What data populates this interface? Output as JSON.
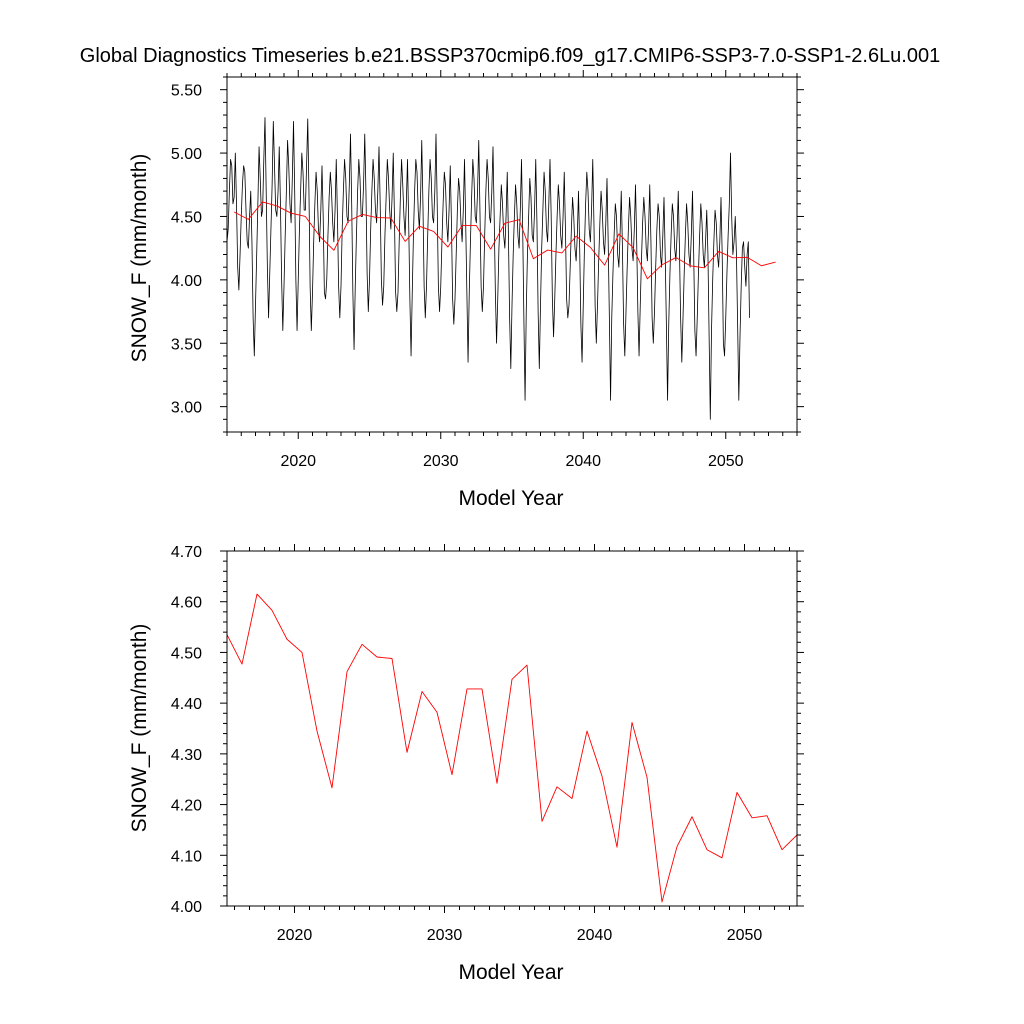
{
  "chart_data": [
    {
      "type": "line",
      "title": "Global Diagnostics Timeseries b.e21.BSSP370cmip6.f09_g17.CMIP6-SSP3-7.0-SSP1-2.6Lu.001",
      "xlabel": "Model Year",
      "ylabel": "SNOW_F (mm/month)",
      "xlim": [
        2015,
        2055
      ],
      "ylim": [
        2.8,
        5.6
      ],
      "xticks": [
        2020,
        2030,
        2040,
        2050
      ],
      "yticks": [
        3.0,
        3.5,
        4.0,
        4.5,
        5.0,
        5.5
      ],
      "ytick_labels": [
        "3.00",
        "3.50",
        "4.00",
        "4.50",
        "5.00",
        "5.50"
      ],
      "series": [
        {
          "kind": "monthly",
          "color": "#000000",
          "x_start": 2015.0,
          "x_step": 0.0833333,
          "values": [
            4.3,
            4.4,
            4.7,
            4.95,
            4.9,
            4.6,
            4.65,
            5.0,
            4.6,
            4.1,
            3.92,
            4.2,
            4.5,
            4.75,
            4.9,
            4.85,
            4.55,
            4.3,
            4.25,
            4.5,
            4.7,
            4.3,
            3.7,
            3.4,
            3.8,
            4.2,
            4.6,
            5.05,
            4.8,
            4.5,
            4.55,
            4.95,
            5.28,
            4.7,
            4.1,
            3.7,
            4.05,
            4.4,
            4.75,
            5.25,
            4.9,
            4.55,
            4.5,
            4.7,
            5.05,
            4.6,
            4.0,
            3.6,
            3.95,
            4.35,
            4.7,
            5.1,
            4.9,
            4.6,
            4.45,
            4.8,
            5.25,
            4.7,
            4.0,
            3.6,
            4.0,
            4.4,
            4.7,
            5.0,
            4.85,
            4.55,
            4.55,
            4.9,
            5.27,
            4.7,
            3.95,
            3.6,
            3.9,
            4.3,
            4.6,
            4.85,
            4.7,
            4.4,
            4.3,
            4.55,
            4.9,
            4.5,
            3.9,
            3.85,
            4.0,
            4.35,
            4.65,
            4.85,
            4.7,
            4.45,
            4.3,
            4.55,
            4.95,
            4.5,
            3.95,
            3.7,
            3.95,
            4.4,
            4.7,
            4.95,
            4.8,
            4.5,
            4.45,
            4.75,
            5.15,
            4.6,
            3.9,
            3.45,
            3.95,
            4.35,
            4.7,
            4.95,
            4.8,
            4.5,
            4.5,
            4.75,
            5.15,
            4.7,
            4.05,
            3.75,
            4.0,
            4.4,
            4.7,
            4.95,
            4.8,
            4.55,
            4.45,
            4.7,
            5.05,
            4.6,
            4.0,
            3.8,
            3.95,
            4.35,
            4.65,
            4.95,
            4.8,
            4.55,
            4.4,
            4.65,
            5.0,
            4.5,
            3.9,
            3.75,
            3.9,
            4.3,
            4.65,
            4.95,
            4.75,
            4.5,
            4.35,
            4.6,
            4.95,
            4.45,
            3.85,
            3.4,
            3.9,
            4.35,
            4.7,
            4.95,
            4.85,
            4.55,
            4.4,
            4.65,
            5.1,
            4.6,
            3.95,
            3.7,
            3.95,
            4.35,
            4.7,
            4.95,
            4.8,
            4.5,
            4.45,
            4.7,
            5.15,
            4.6,
            3.95,
            3.75,
            3.95,
            4.3,
            4.6,
            4.85,
            4.75,
            4.45,
            4.3,
            4.55,
            4.9,
            4.45,
            3.85,
            3.65,
            3.85,
            4.2,
            4.55,
            4.8,
            4.7,
            4.45,
            4.3,
            4.55,
            4.95,
            4.45,
            3.9,
            3.35,
            3.9,
            4.3,
            4.65,
            4.95,
            4.8,
            4.5,
            4.45,
            4.7,
            5.1,
            4.55,
            3.95,
            3.75,
            3.95,
            4.35,
            4.7,
            4.95,
            4.8,
            4.5,
            4.45,
            4.7,
            5.05,
            4.5,
            3.9,
            3.5,
            3.85,
            4.25,
            4.5,
            4.75,
            4.6,
            4.35,
            4.25,
            4.5,
            4.85,
            4.35,
            3.7,
            3.3,
            3.8,
            4.2,
            4.5,
            4.75,
            4.6,
            4.35,
            4.25,
            4.55,
            4.95,
            4.4,
            3.7,
            3.05,
            3.75,
            4.2,
            4.5,
            4.8,
            4.65,
            4.35,
            4.3,
            4.55,
            4.95,
            4.45,
            3.75,
            3.3,
            3.8,
            4.25,
            4.55,
            4.85,
            4.7,
            4.4,
            4.3,
            4.6,
            4.95,
            4.5,
            3.85,
            3.55,
            3.85,
            4.2,
            4.5,
            4.75,
            4.6,
            4.35,
            4.25,
            4.5,
            4.85,
            4.4,
            3.85,
            3.7,
            3.8,
            4.1,
            4.4,
            4.65,
            4.5,
            4.25,
            4.15,
            4.35,
            4.7,
            4.25,
            3.65,
            3.35,
            3.8,
            4.25,
            4.6,
            4.85,
            4.7,
            4.4,
            4.3,
            4.55,
            4.95,
            4.45,
            3.8,
            3.5,
            3.8,
            4.15,
            4.45,
            4.7,
            4.55,
            4.3,
            4.2,
            4.45,
            4.8,
            4.3,
            3.7,
            3.05,
            3.7,
            4.05,
            4.35,
            4.6,
            4.5,
            4.2,
            4.1,
            4.35,
            4.7,
            4.25,
            3.65,
            3.4,
            3.75,
            4.1,
            4.4,
            4.65,
            4.5,
            4.25,
            4.15,
            4.4,
            4.75,
            4.3,
            3.75,
            3.4,
            3.8,
            4.15,
            4.45,
            4.65,
            4.5,
            4.25,
            4.15,
            4.4,
            4.75,
            4.3,
            3.7,
            3.5,
            3.75,
            4.1,
            4.4,
            4.6,
            4.5,
            4.2,
            4.1,
            4.35,
            4.65,
            4.2,
            3.65,
            3.05,
            3.65,
            4.05,
            4.35,
            4.6,
            4.5,
            4.25,
            4.15,
            4.35,
            4.7,
            4.25,
            3.7,
            3.35,
            3.7,
            4.05,
            4.35,
            4.6,
            4.45,
            4.2,
            4.1,
            4.35,
            4.7,
            4.2,
            3.6,
            3.4,
            3.7,
            4.05,
            4.35,
            4.6,
            4.45,
            4.2,
            4.1,
            4.3,
            4.55,
            4.2,
            3.55,
            2.9,
            3.6,
            4.0,
            4.3,
            4.55,
            4.45,
            4.2,
            4.1,
            4.3,
            4.65,
            4.2,
            3.5,
            3.4,
            3.7,
            4.05,
            4.35,
            4.6,
            5.0,
            4.5,
            4.2,
            4.3,
            4.5,
            4.2,
            3.65,
            3.05,
            3.55,
            3.95,
            4.25,
            4.3,
            4.1,
            3.95,
            4.2,
            4.3,
            3.7
          ]
        },
        {
          "kind": "annual",
          "color": "#ff0000",
          "x": [
            2015.5,
            2016.5,
            2017.5,
            2018.5,
            2019.5,
            2020.5,
            2021.5,
            2022.5,
            2023.5,
            2024.5,
            2025.5,
            2026.5,
            2027.5,
            2028.5,
            2029.5,
            2030.5,
            2031.5,
            2032.5,
            2033.5,
            2034.5,
            2035.5,
            2036.5,
            2037.5,
            2038.5,
            2039.5,
            2040.5,
            2041.5,
            2042.5,
            2043.5,
            2044.5,
            2045.5,
            2046.5,
            2047.5,
            2048.5,
            2049.5,
            2050.5,
            2051.5,
            2052.5,
            2053.5
          ],
          "values": [
            4.535,
            4.477,
            4.615,
            4.583,
            4.526,
            4.5,
            4.345,
            4.233,
            4.462,
            4.516,
            4.491,
            4.488,
            4.303,
            4.423,
            4.382,
            4.259,
            4.428,
            4.428,
            4.242,
            4.447,
            4.475,
            4.167,
            4.235,
            4.212,
            4.345,
            4.256,
            4.116,
            4.362,
            4.254,
            4.008,
            4.117,
            4.176,
            4.111,
            4.095,
            4.224,
            4.174,
            4.178,
            4.111,
            4.14
          ]
        }
      ]
    },
    {
      "type": "line",
      "xlabel": "Model Year",
      "ylabel": "SNOW_F (mm/month)",
      "xlim": [
        2015.5,
        2053.5
      ],
      "ylim": [
        4.0,
        4.7
      ],
      "xticks": [
        2020,
        2030,
        2040,
        2050
      ],
      "yticks": [
        4.0,
        4.1,
        4.2,
        4.3,
        4.4,
        4.5,
        4.6,
        4.7
      ],
      "ytick_labels": [
        "4.00",
        "4.10",
        "4.20",
        "4.30",
        "4.40",
        "4.50",
        "4.60",
        "4.70"
      ],
      "series": [
        {
          "kind": "annual",
          "color": "#ff0000",
          "x": [
            2015.5,
            2016.5,
            2017.5,
            2018.5,
            2019.5,
            2020.5,
            2021.5,
            2022.5,
            2023.5,
            2024.5,
            2025.5,
            2026.5,
            2027.5,
            2028.5,
            2029.5,
            2030.5,
            2031.5,
            2032.5,
            2033.5,
            2034.5,
            2035.5,
            2036.5,
            2037.5,
            2038.5,
            2039.5,
            2040.5,
            2041.5,
            2042.5,
            2043.5,
            2044.5,
            2045.5,
            2046.5,
            2047.5,
            2048.5,
            2049.5,
            2050.5,
            2051.5,
            2052.5,
            2053.5
          ],
          "values": [
            4.535,
            4.477,
            4.615,
            4.583,
            4.526,
            4.5,
            4.345,
            4.233,
            4.462,
            4.516,
            4.491,
            4.488,
            4.303,
            4.423,
            4.382,
            4.259,
            4.428,
            4.428,
            4.242,
            4.447,
            4.475,
            4.167,
            4.235,
            4.212,
            4.345,
            4.256,
            4.116,
            4.362,
            4.254,
            4.008,
            4.117,
            4.176,
            4.111,
            4.095,
            4.224,
            4.174,
            4.178,
            4.111,
            4.14
          ]
        }
      ]
    }
  ]
}
